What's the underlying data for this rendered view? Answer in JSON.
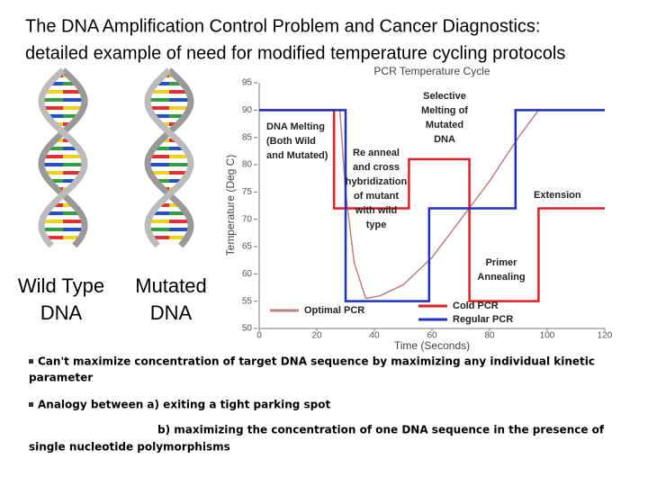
{
  "slide": {
    "title_lines": [
      "The DNA Amplification Control Problem and Cancer Diagnostics:",
      "detailed example of need for modified temperature cycling protocols"
    ],
    "image_labels": [
      [
        "Wild Type",
        "DNA"
      ],
      [
        "Mutated",
        "DNA"
      ]
    ],
    "bullets": [
      [
        "Can't maximize concentration of target DNA sequence by maximizing any individual kinetic",
        "parameter"
      ],
      [
        "Analogy between  a) exiting a tight parking spot",
        "b) maximizing the concentration of one DNA sequence in the presence of",
        "single nucleotide polymorphisms"
      ]
    ]
  },
  "chart_data": {
    "type": "line",
    "title": "PCR Temperature Cycle",
    "x_label": "Time (Seconds)",
    "y_label": "Temperature (Deg C)",
    "xlim": [
      0,
      120
    ],
    "xticks": [
      0,
      20,
      40,
      60,
      80,
      100,
      120
    ],
    "ylim": [
      50,
      95
    ],
    "yticks": [
      50,
      55,
      60,
      65,
      70,
      75,
      80,
      85,
      90,
      95
    ],
    "series": [
      {
        "name": "Optimal PCR",
        "color": "#c08080",
        "x": [
          28,
          30,
          33,
          37,
          42,
          50,
          60,
          70,
          80,
          90,
          97
        ],
        "values": [
          90,
          75,
          62,
          55.5,
          56,
          58,
          63,
          70,
          77,
          85,
          90
        ]
      },
      {
        "name": "Cold PCR",
        "color": "#e02020",
        "x": [
          0,
          26,
          26,
          52,
          52,
          73,
          73,
          97,
          97,
          120
        ],
        "values": [
          90,
          90,
          72,
          72,
          81,
          81,
          55,
          55,
          72,
          72
        ]
      },
      {
        "name": "Regular PCR",
        "color": "#2030c0",
        "x": [
          0,
          30,
          30,
          59,
          59,
          89,
          89,
          120
        ],
        "values": [
          90,
          90,
          55,
          55,
          72,
          72,
          90,
          90
        ]
      }
    ],
    "annotations": [
      [
        "DNA Melting",
        "(Both Wild",
        "and Mutated)"
      ],
      [
        "Selective",
        "Melting of",
        "Mutated",
        "DNA"
      ],
      [
        "Re anneal",
        "and cross",
        "hybridization",
        "of mutant",
        "with wild",
        "type"
      ],
      [
        "Extension"
      ],
      [
        "Primer",
        "Annealing"
      ]
    ]
  }
}
